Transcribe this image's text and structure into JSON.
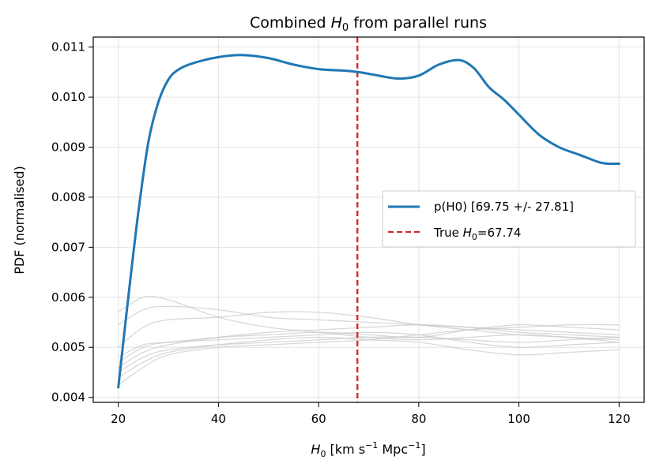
{
  "chart_data": {
    "type": "line",
    "title": "Combined H0 from parallel runs",
    "title_parts": {
      "pre": "Combined ",
      "sym": "H",
      "sub": "0",
      "post": " from parallel runs"
    },
    "xlabel": "H0 [km s^-1 Mpc^-1]",
    "xlabel_parts": {
      "sym": "H",
      "sub": "0",
      "rest": " [km s",
      "exp1": "−1",
      "mid": " Mpc",
      "exp2": "−1",
      "end": "]"
    },
    "ylabel": "PDF (normalised)",
    "xlim": [
      15,
      125
    ],
    "ylim": [
      0.0039,
      0.0112
    ],
    "x_ticks": [
      20,
      40,
      60,
      80,
      100,
      120
    ],
    "y_ticks": [
      0.004,
      0.005,
      0.006,
      0.007,
      0.008,
      0.009,
      0.01,
      0.011
    ],
    "x_tick_labels": [
      "20",
      "40",
      "60",
      "80",
      "100",
      "120"
    ],
    "y_tick_labels": [
      "0.004",
      "0.005",
      "0.006",
      "0.007",
      "0.008",
      "0.009",
      "0.010",
      "0.011"
    ],
    "grid": true,
    "legend_position": "center-right",
    "true_h0": 67.74,
    "colors": {
      "combined": "#1f77b4",
      "truth": "#d62728",
      "runs": "#c8c8c8"
    },
    "legend": [
      {
        "label": "p(H0) [69.75 +/- 27.81]",
        "style": "solid",
        "color": "#1f77b4"
      },
      {
        "label_pre": "True ",
        "sym": "H",
        "sub": "0",
        "label_post": "=67.74",
        "label": "True H0=67.74",
        "style": "dashed",
        "color": "#d62728"
      }
    ],
    "series": [
      {
        "name": "p(H0) [69.75 +/- 27.81]",
        "role": "combined",
        "x": [
          20,
          22,
          24,
          26,
          28,
          30,
          32,
          35,
          40,
          45,
          50,
          55,
          60,
          65,
          68,
          72,
          76,
          80,
          84,
          88,
          91,
          94,
          97,
          100,
          104,
          108,
          112,
          116,
          118,
          120
        ],
        "y": [
          0.0042,
          0.006,
          0.0077,
          0.0091,
          0.0099,
          0.01035,
          0.01055,
          0.01068,
          0.0108,
          0.01084,
          0.01078,
          0.01065,
          0.01056,
          0.01053,
          0.0105,
          0.01043,
          0.01037,
          0.01043,
          0.01065,
          0.01074,
          0.01058,
          0.0102,
          0.00995,
          0.00965,
          0.00925,
          0.009,
          0.00885,
          0.0087,
          0.00867,
          0.00867
        ]
      },
      {
        "role": "run",
        "x": [
          20,
          25,
          30,
          40,
          50,
          60,
          70,
          80,
          90,
          100,
          110,
          120
        ],
        "y": [
          0.0057,
          0.006,
          0.00595,
          0.0056,
          0.0054,
          0.0053,
          0.0052,
          0.00515,
          0.0052,
          0.00525,
          0.0052,
          0.0051
        ]
      },
      {
        "role": "run",
        "x": [
          20,
          25,
          30,
          40,
          50,
          60,
          70,
          80,
          90,
          100,
          110,
          120
        ],
        "y": [
          0.00545,
          0.00575,
          0.00582,
          0.00575,
          0.0056,
          0.00555,
          0.0055,
          0.00545,
          0.0054,
          0.00535,
          0.0053,
          0.00525
        ]
      },
      {
        "role": "run",
        "x": [
          20,
          25,
          30,
          40,
          50,
          60,
          70,
          80,
          90,
          100,
          110,
          120
        ],
        "y": [
          0.005,
          0.0054,
          0.00555,
          0.0056,
          0.0057,
          0.0057,
          0.0056,
          0.00545,
          0.00535,
          0.00525,
          0.0052,
          0.00515
        ]
      },
      {
        "role": "run",
        "x": [
          20,
          25,
          30,
          40,
          50,
          60,
          70,
          80,
          90,
          100,
          110,
          120
        ],
        "y": [
          0.0048,
          0.00505,
          0.0051,
          0.0052,
          0.00525,
          0.0053,
          0.00525,
          0.0052,
          0.00535,
          0.00545,
          0.0054,
          0.00535
        ]
      },
      {
        "role": "run",
        "x": [
          20,
          25,
          30,
          40,
          50,
          60,
          70,
          80,
          90,
          100,
          110,
          120
        ],
        "y": [
          0.0047,
          0.005,
          0.0051,
          0.00515,
          0.0052,
          0.00525,
          0.0053,
          0.00525,
          0.0051,
          0.005,
          0.00505,
          0.0051
        ]
      },
      {
        "role": "run",
        "x": [
          20,
          25,
          30,
          40,
          50,
          60,
          70,
          80,
          90,
          100,
          110,
          120
        ],
        "y": [
          0.0046,
          0.0049,
          0.00505,
          0.0052,
          0.0053,
          0.00535,
          0.0054,
          0.00545,
          0.0054,
          0.0053,
          0.00525,
          0.0052
        ]
      },
      {
        "role": "run",
        "x": [
          20,
          25,
          30,
          40,
          50,
          60,
          70,
          80,
          90,
          100,
          110,
          120
        ],
        "y": [
          0.0045,
          0.0048,
          0.00495,
          0.00505,
          0.0051,
          0.00515,
          0.0052,
          0.0052,
          0.00515,
          0.0051,
          0.00515,
          0.0052
        ]
      },
      {
        "role": "run",
        "x": [
          20,
          25,
          30,
          40,
          50,
          60,
          70,
          80,
          90,
          100,
          110,
          120
        ],
        "y": [
          0.0044,
          0.0047,
          0.0049,
          0.00505,
          0.00515,
          0.0052,
          0.00515,
          0.0051,
          0.00495,
          0.00485,
          0.0049,
          0.00495
        ]
      },
      {
        "role": "run",
        "x": [
          20,
          25,
          30,
          40,
          50,
          60,
          70,
          80,
          90,
          100,
          110,
          120
        ],
        "y": [
          0.00425,
          0.0046,
          0.00485,
          0.005,
          0.00505,
          0.0051,
          0.00515,
          0.00525,
          0.00535,
          0.0054,
          0.00545,
          0.00545
        ]
      }
    ]
  }
}
